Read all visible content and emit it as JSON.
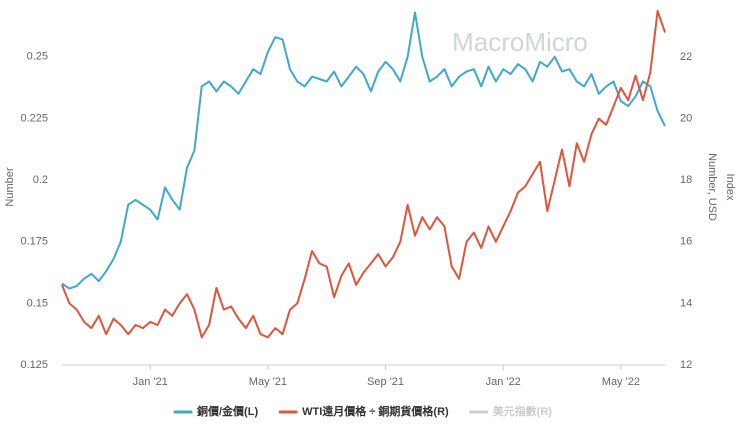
{
  "chart_data": {
    "type": "line",
    "watermark": "MacroMicro",
    "y_label": "Number",
    "y2_label": "Index",
    "y2_sublabel": "Number, USD",
    "categories": [
      null,
      null,
      null,
      null,
      null,
      null,
      null,
      null,
      null,
      null,
      null,
      null,
      "Jan '21",
      null,
      null,
      null,
      null,
      null,
      null,
      null,
      null,
      null,
      null,
      null,
      null,
      null,
      null,
      null,
      "May '21",
      null,
      null,
      null,
      null,
      null,
      null,
      null,
      null,
      null,
      null,
      null,
      null,
      null,
      null,
      null,
      "Sep '21",
      null,
      null,
      null,
      null,
      null,
      null,
      null,
      null,
      null,
      null,
      null,
      null,
      null,
      null,
      null,
      "Jan '22",
      null,
      null,
      null,
      null,
      null,
      null,
      null,
      null,
      null,
      null,
      null,
      null,
      null,
      null,
      null,
      "May '22",
      null,
      null,
      null,
      null,
      null,
      null
    ],
    "series": [
      {
        "name": "銅價/金價(L)",
        "color": "#3ea7d2",
        "axis": "y",
        "values": [
          0.158,
          0.156,
          0.157,
          0.16,
          0.162,
          0.159,
          0.163,
          0.168,
          0.175,
          0.19,
          0.192,
          0.19,
          0.188,
          0.184,
          0.197,
          0.192,
          0.188,
          0.205,
          0.212,
          0.238,
          0.24,
          0.236,
          0.24,
          0.238,
          0.235,
          0.24,
          0.245,
          0.243,
          0.252,
          0.258,
          0.257,
          0.245,
          0.24,
          0.238,
          0.242,
          0.241,
          0.24,
          0.244,
          0.238,
          0.242,
          0.246,
          0.243,
          0.236,
          0.244,
          0.248,
          0.245,
          0.24,
          0.25,
          0.268,
          0.25,
          0.24,
          0.242,
          0.245,
          0.238,
          0.242,
          0.244,
          0.245,
          0.238,
          0.246,
          0.24,
          0.245,
          0.243,
          0.247,
          0.245,
          0.24,
          0.248,
          0.246,
          0.25,
          0.244,
          0.245,
          0.24,
          0.238,
          0.243,
          0.235,
          0.238,
          0.24,
          0.232,
          0.23,
          0.234,
          0.24,
          0.238,
          0.228,
          0.222
        ]
      },
      {
        "name": "WTI遠月價格 ÷ 銅期貨價格(R)",
        "color": "#e0553a",
        "axis": "y2",
        "values": [
          14.6,
          14.0,
          13.8,
          13.4,
          13.2,
          13.6,
          13.0,
          13.5,
          13.3,
          13.0,
          13.3,
          13.2,
          13.4,
          13.3,
          13.8,
          13.6,
          14.0,
          14.3,
          13.8,
          12.9,
          13.3,
          14.5,
          13.8,
          13.9,
          13.5,
          13.2,
          13.6,
          13.0,
          12.9,
          13.2,
          13.0,
          13.8,
          14.0,
          14.8,
          15.7,
          15.3,
          15.2,
          14.2,
          14.9,
          15.3,
          14.6,
          15.0,
          15.3,
          15.6,
          15.2,
          15.5,
          16.0,
          17.2,
          16.2,
          16.8,
          16.4,
          16.8,
          16.5,
          15.2,
          14.8,
          16.0,
          16.3,
          15.8,
          16.5,
          16.0,
          16.5,
          17.0,
          17.6,
          17.8,
          18.2,
          18.6,
          17.0,
          18.0,
          19.0,
          17.8,
          19.2,
          18.6,
          19.5,
          20.0,
          19.8,
          20.4,
          21.0,
          20.6,
          21.4,
          20.6,
          21.5,
          23.5,
          22.8
        ]
      }
    ],
    "legend_hidden": [
      {
        "name": "美元指數(R)",
        "color": "#cccccc"
      }
    ],
    "legend": "bottom",
    "ylim": [
      0.125,
      0.269
    ],
    "yticks": [
      0.125,
      0.15,
      0.175,
      0.2,
      0.225,
      0.25
    ],
    "y2lim": [
      12,
      23.53
    ],
    "y2ticks": [
      12,
      14,
      16,
      18,
      20,
      22
    ],
    "grid": false
  }
}
